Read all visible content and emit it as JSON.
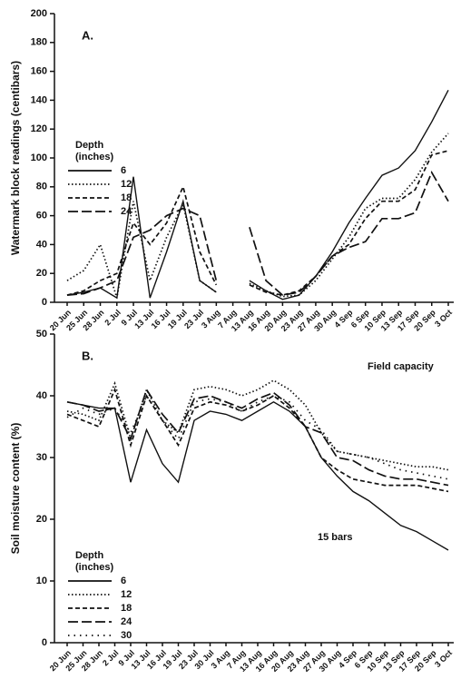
{
  "chart_data": [
    {
      "type": "line",
      "panel_label": "A.",
      "y_label": "Watermark block readings (centibars)",
      "legend_title": [
        "Depth",
        "(inches)"
      ],
      "categories": [
        "20 Jun",
        "25 Jun",
        "28 Jun",
        "2 Jul",
        "9 Jul",
        "13 Jul",
        "16 Jul",
        "19 Jul",
        "23 Jul",
        "3 Aug",
        "7 Aug",
        "13 Aug",
        "16 Aug",
        "20 Aug",
        "23 Aug",
        "27 Aug",
        "30 Aug",
        "4 Sep",
        "6 Sep",
        "10 Sep",
        "13 Sep",
        "17 Sep",
        "20 Sep",
        "3 Oct"
      ],
      "ylim": [
        0,
        200
      ],
      "yticks": [
        0,
        20,
        40,
        60,
        80,
        100,
        120,
        140,
        160,
        180,
        200
      ],
      "series": [
        {
          "name": "6",
          "color": "#111111",
          "dash": "solid",
          "values": [
            5,
            7,
            10,
            3,
            87,
            3,
            35,
            70,
            15,
            7,
            null,
            15,
            8,
            2,
            5,
            18,
            35,
            55,
            72,
            88,
            93,
            105,
            125,
            147
          ]
        },
        {
          "name": "12",
          "color": "#111111",
          "dash": "dotted",
          "values": [
            15,
            22,
            40,
            3,
            70,
            15,
            45,
            68,
            15,
            7,
            null,
            13,
            8,
            4,
            5,
            15,
            30,
            45,
            65,
            72,
            72,
            85,
            104,
            117
          ]
        },
        {
          "name": "18",
          "color": "#111111",
          "dash": "dashed",
          "values": [
            5,
            8,
            15,
            20,
            55,
            40,
            55,
            80,
            35,
            12,
            null,
            12,
            7,
            5,
            8,
            18,
            32,
            40,
            58,
            70,
            70,
            78,
            102,
            105
          ]
        },
        {
          "name": "24",
          "color": "#111111",
          "dash": "longdash",
          "values": [
            5,
            6,
            10,
            15,
            45,
            50,
            60,
            65,
            60,
            15,
            null,
            52,
            15,
            5,
            7,
            18,
            32,
            38,
            42,
            58,
            58,
            62,
            90,
            70
          ]
        }
      ]
    },
    {
      "type": "line",
      "panel_label": "B.",
      "y_label": "Soil moisture content (%)",
      "legend_title": [
        "Depth",
        "(inches)"
      ],
      "annotations": [
        "Field capacity",
        "15 bars"
      ],
      "categories": [
        "20 Jun",
        "25 Jun",
        "28 Jun",
        "2 Jul",
        "9 Jul",
        "13 Jul",
        "16 Jul",
        "19 Jul",
        "23 Jul",
        "30 Jul",
        "3 Aug",
        "7 Aug",
        "13 Aug",
        "16 Aug",
        "20 Aug",
        "23 Aug",
        "27 Aug",
        "30 Aug",
        "4 Sep",
        "6 Sep",
        "10 Sep",
        "13 Sep",
        "17 Sep",
        "20 Sep",
        "3 Oct"
      ],
      "ylim": [
        0,
        50
      ],
      "yticks": [
        0,
        10,
        20,
        30,
        40,
        50
      ],
      "series": [
        {
          "name": "6",
          "color": "#111111",
          "dash": "solid",
          "values": [
            39,
            38.5,
            38,
            38,
            26,
            34.5,
            29,
            26,
            36,
            37.5,
            37,
            36,
            37.5,
            39,
            37.5,
            35,
            30,
            27,
            24.5,
            23,
            21,
            19,
            18,
            16.5,
            15
          ]
        },
        {
          "name": "12",
          "color": "#111111",
          "dash": "dotted",
          "values": [
            37.5,
            37,
            36,
            42,
            33,
            41,
            36,
            34,
            41,
            41.5,
            41,
            40,
            41,
            42.5,
            41,
            38.5,
            34,
            31,
            30.5,
            30,
            29.5,
            29,
            28.5,
            28.5,
            28
          ]
        },
        {
          "name": "18",
          "color": "#111111",
          "dash": "dashed",
          "values": [
            37,
            36,
            35,
            41,
            32,
            40,
            36,
            32,
            38,
            39,
            38.5,
            37.5,
            38.5,
            40,
            38,
            35,
            30,
            28,
            26.5,
            26,
            25.5,
            25.5,
            25.5,
            25,
            24.5
          ]
        },
        {
          "name": "24",
          "color": "#111111",
          "dash": "longdash",
          "values": [
            39,
            38.5,
            37.5,
            38,
            33,
            41,
            37,
            34,
            39.5,
            40,
            39,
            38,
            39.5,
            40.5,
            38.5,
            35,
            34,
            30,
            29.5,
            28,
            27,
            26.5,
            26.5,
            26,
            25.5
          ]
        },
        {
          "name": "30",
          "color": "#111111",
          "dash": "spaced",
          "values": [
            36.5,
            38,
            37,
            38,
            34,
            40,
            36,
            33,
            39,
            39.5,
            39,
            37.5,
            39,
            40,
            39,
            36,
            34.5,
            31,
            30.5,
            30,
            29,
            28,
            27.5,
            27,
            26.5
          ]
        }
      ]
    }
  ]
}
